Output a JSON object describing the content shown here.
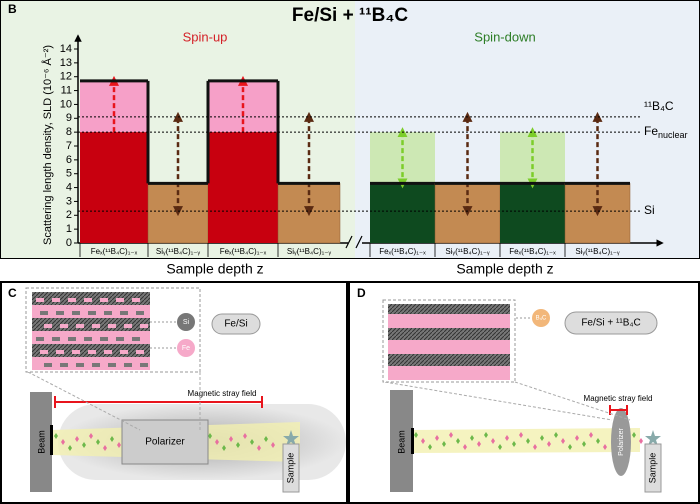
{
  "panel_b": {
    "label": "B",
    "title": "Fe/Si + ¹¹B₄C",
    "ylabel": "Scattering length density, SLD (10⁻⁶ Å⁻²)",
    "ylim": [
      0,
      14
    ],
    "yticks": [
      0,
      1,
      2,
      3,
      4,
      5,
      6,
      7,
      8,
      9,
      10,
      11,
      12,
      13,
      14
    ],
    "xlabel": "Sample depth z",
    "spin_up": {
      "label": "Spin-up",
      "layers": [
        {
          "name": "Feₓ(¹¹B₄C)₁₋ₓ",
          "nuclear": 8,
          "total": 11.7
        },
        {
          "name": "Siᵧ(¹¹B₄C)₁₋ᵧ",
          "total": 4.3
        },
        {
          "name": "Feₓ(¹¹B₄C)₁₋ₓ",
          "nuclear": 8,
          "total": 11.7
        },
        {
          "name": "Siᵧ(¹¹B₄C)₁₋ᵧ",
          "total": 4.3
        }
      ]
    },
    "spin_down": {
      "label": "Spin-down",
      "layers": [
        {
          "name": "Feₓ(¹¹B₄C)₁₋ₓ",
          "nuclear": 8,
          "total": 4.3
        },
        {
          "name": "Siᵧ(¹¹B₄C)₁₋ᵧ",
          "total": 4.3
        },
        {
          "name": "Feₓ(¹¹B₄C)₁₋ₓ",
          "nuclear": 8,
          "total": 4.3
        },
        {
          "name": "Siᵧ(¹¹B₄C)₁₋ᵧ",
          "total": 4.3
        }
      ]
    },
    "reference_lines": [
      {
        "label": "¹¹B₄C",
        "value": 9.1
      },
      {
        "label": "Fe",
        "subscript": "nuclear",
        "value": 8
      },
      {
        "label": "Si",
        "value": 2.3
      }
    ]
  },
  "panel_c": {
    "label": "C",
    "sample": "Fe/Si",
    "legend": [
      "Si",
      "Fe"
    ],
    "field": "Magnetic stray field",
    "polarizer": "Polarizer",
    "beam": "Beam",
    "sample_label": "Sample"
  },
  "panel_d": {
    "label": "D",
    "sample": "Fe/Si + ¹¹B₄C",
    "legend": [
      "B₄C"
    ],
    "field": "Magnetic stray field",
    "polarizer": "Polarizer",
    "beam": "Beam",
    "sample_label": "Sample"
  }
}
